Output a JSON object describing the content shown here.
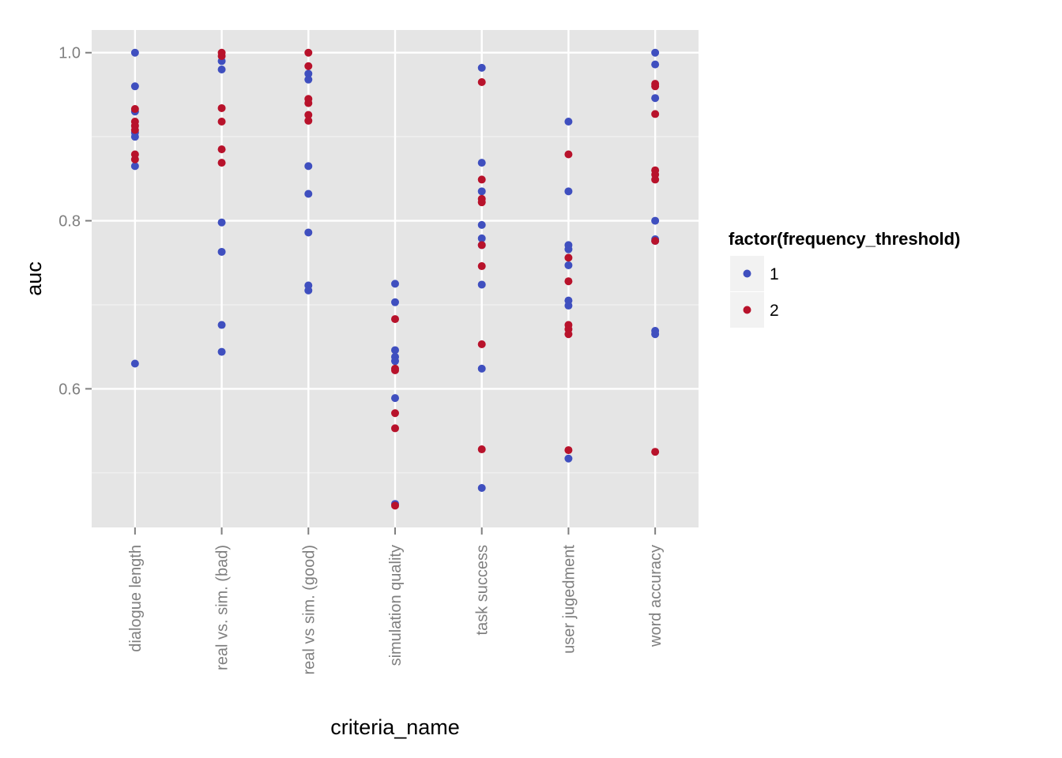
{
  "chart_data": {
    "type": "scatter",
    "title": "",
    "xlabel": "criteria_name",
    "ylabel": "auc",
    "categories": [
      "dialogue length",
      "real vs. sim. (bad)",
      "real vs sim. (good)",
      "simulation quality",
      "task success",
      "user jugedment",
      "word accuracy"
    ],
    "ylim": [
      0.435,
      1.027
    ],
    "yticks": [
      0.6,
      0.8,
      1.0
    ],
    "ytick_labels": [
      "0.6",
      "0.8",
      "1.0"
    ],
    "grid": true,
    "legend": {
      "title": "factor(frequency_threshold)",
      "placement": "right"
    },
    "series": [
      {
        "name": "1",
        "color": "#3f4fbf",
        "points": [
          [
            "dialogue length",
            1.0
          ],
          [
            "dialogue length",
            0.96
          ],
          [
            "dialogue length",
            0.93
          ],
          [
            "dialogue length",
            0.905
          ],
          [
            "dialogue length",
            0.9
          ],
          [
            "dialogue length",
            0.865
          ],
          [
            "dialogue length",
            0.63
          ],
          [
            "real vs. sim. (bad)",
            0.99
          ],
          [
            "real vs. sim. (bad)",
            0.98
          ],
          [
            "real vs. sim. (bad)",
            0.798
          ],
          [
            "real vs. sim. (bad)",
            0.763
          ],
          [
            "real vs. sim. (bad)",
            0.676
          ],
          [
            "real vs. sim. (bad)",
            0.644
          ],
          [
            "real vs sim. (good)",
            0.975
          ],
          [
            "real vs sim. (good)",
            0.968
          ],
          [
            "real vs sim. (good)",
            0.865
          ],
          [
            "real vs sim. (good)",
            0.832
          ],
          [
            "real vs sim. (good)",
            0.786
          ],
          [
            "real vs sim. (good)",
            0.723
          ],
          [
            "real vs sim. (good)",
            0.717
          ],
          [
            "simulation quality",
            0.725
          ],
          [
            "simulation quality",
            0.703
          ],
          [
            "simulation quality",
            0.646
          ],
          [
            "simulation quality",
            0.638
          ],
          [
            "simulation quality",
            0.633
          ],
          [
            "simulation quality",
            0.589
          ],
          [
            "simulation quality",
            0.463
          ],
          [
            "task success",
            0.982
          ],
          [
            "task success",
            0.869
          ],
          [
            "task success",
            0.835
          ],
          [
            "task success",
            0.795
          ],
          [
            "task success",
            0.779
          ],
          [
            "task success",
            0.771
          ],
          [
            "task success",
            0.724
          ],
          [
            "task success",
            0.624
          ],
          [
            "task success",
            0.482
          ],
          [
            "user jugedment",
            0.918
          ],
          [
            "user jugedment",
            0.835
          ],
          [
            "user jugedment",
            0.771
          ],
          [
            "user jugedment",
            0.766
          ],
          [
            "user jugedment",
            0.747
          ],
          [
            "user jugedment",
            0.705
          ],
          [
            "user jugedment",
            0.699
          ],
          [
            "user jugedment",
            0.517
          ],
          [
            "word accuracy",
            1.0
          ],
          [
            "word accuracy",
            0.986
          ],
          [
            "word accuracy",
            0.946
          ],
          [
            "word accuracy",
            0.8
          ],
          [
            "word accuracy",
            0.778
          ],
          [
            "word accuracy",
            0.776
          ],
          [
            "word accuracy",
            0.669
          ],
          [
            "word accuracy",
            0.665
          ]
        ]
      },
      {
        "name": "2",
        "color": "#b8122b",
        "points": [
          [
            "dialogue length",
            0.933
          ],
          [
            "dialogue length",
            0.918
          ],
          [
            "dialogue length",
            0.913
          ],
          [
            "dialogue length",
            0.908
          ],
          [
            "dialogue length",
            0.879
          ],
          [
            "dialogue length",
            0.873
          ],
          [
            "real vs. sim. (bad)",
            1.0
          ],
          [
            "real vs. sim. (bad)",
            0.996
          ],
          [
            "real vs. sim. (bad)",
            0.934
          ],
          [
            "real vs. sim. (bad)",
            0.918
          ],
          [
            "real vs. sim. (bad)",
            0.885
          ],
          [
            "real vs. sim. (bad)",
            0.869
          ],
          [
            "real vs sim. (good)",
            1.0
          ],
          [
            "real vs sim. (good)",
            0.984
          ],
          [
            "real vs sim. (good)",
            0.945
          ],
          [
            "real vs sim. (good)",
            0.94
          ],
          [
            "real vs sim. (good)",
            0.926
          ],
          [
            "real vs sim. (good)",
            0.919
          ],
          [
            "simulation quality",
            0.683
          ],
          [
            "simulation quality",
            0.624
          ],
          [
            "simulation quality",
            0.622
          ],
          [
            "simulation quality",
            0.571
          ],
          [
            "simulation quality",
            0.553
          ],
          [
            "simulation quality",
            0.461
          ],
          [
            "task success",
            0.965
          ],
          [
            "task success",
            0.849
          ],
          [
            "task success",
            0.826
          ],
          [
            "task success",
            0.822
          ],
          [
            "task success",
            0.771
          ],
          [
            "task success",
            0.746
          ],
          [
            "task success",
            0.653
          ],
          [
            "task success",
            0.528
          ],
          [
            "user jugedment",
            0.879
          ],
          [
            "user jugedment",
            0.756
          ],
          [
            "user jugedment",
            0.728
          ],
          [
            "user jugedment",
            0.676
          ],
          [
            "user jugedment",
            0.671
          ],
          [
            "user jugedment",
            0.665
          ],
          [
            "user jugedment",
            0.527
          ],
          [
            "word accuracy",
            0.963
          ],
          [
            "word accuracy",
            0.96
          ],
          [
            "word accuracy",
            0.927
          ],
          [
            "word accuracy",
            0.86
          ],
          [
            "word accuracy",
            0.855
          ],
          [
            "word accuracy",
            0.849
          ],
          [
            "word accuracy",
            0.776
          ],
          [
            "word accuracy",
            0.525
          ]
        ]
      }
    ]
  }
}
